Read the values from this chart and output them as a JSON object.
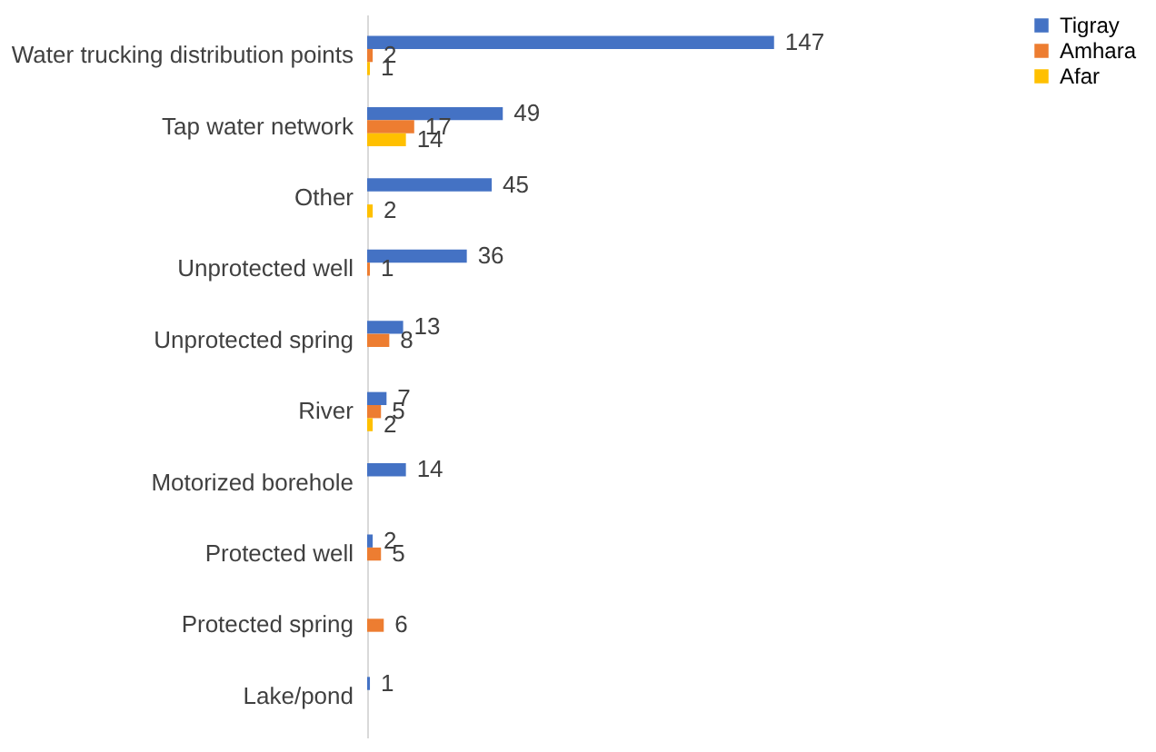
{
  "chart_data": {
    "type": "bar",
    "orientation": "horizontal",
    "data_labels": true,
    "legend": "right",
    "grid": false,
    "categories": [
      "Water trucking distribution points",
      "Tap water network",
      "Other",
      "Unprotected well",
      "Unprotected spring",
      "River",
      "Motorized borehole",
      "Protected well",
      "Protected spring",
      "Lake/pond"
    ],
    "series": [
      {
        "name": "Tigray",
        "color": "#4472c4",
        "values": [
          147,
          49,
          45,
          36,
          13,
          7,
          14,
          2,
          null,
          1
        ]
      },
      {
        "name": "Amhara",
        "color": "#ed7d31",
        "values": [
          2,
          17,
          null,
          1,
          8,
          5,
          null,
          5,
          6,
          null
        ]
      },
      {
        "name": "Afar",
        "color": "#ffc000",
        "values": [
          1,
          14,
          2,
          null,
          null,
          2,
          null,
          null,
          null,
          null
        ]
      }
    ]
  }
}
